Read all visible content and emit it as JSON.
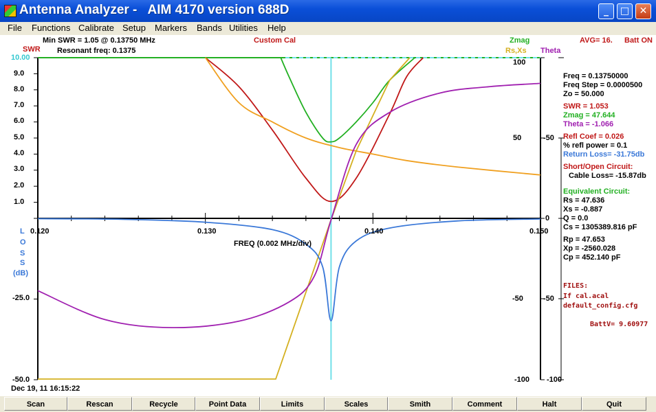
{
  "window": {
    "title": "Antenna Analyzer -   AIM 4170 version 688D",
    "minimize_glyph": "_",
    "maximize_glyph": "□",
    "close_glyph": "✕"
  },
  "menu": [
    "File",
    "Functions",
    "Calibrate",
    "Setup",
    "Markers",
    "Bands",
    "Utilities",
    "Help"
  ],
  "header": {
    "min_swr": "Min SWR =   1.05 @  0.13750 MHz",
    "resonant": "Resonant freq:  0.1375",
    "custom_cal": "Custom Cal",
    "avg": "AVG=  16.",
    "batt": "Batt ON",
    "zmag_label": "Zmag",
    "rsxs_label": "Rs,Xs",
    "theta_label": "Theta",
    "swr_label": "SWR"
  },
  "axes": {
    "swr_ticks": [
      "10.00",
      "9.0",
      "8.0",
      "7.0",
      "6.0",
      "5.0",
      "4.0",
      "3.0",
      "2.0",
      "1.0"
    ],
    "loss_ticks": [
      "-25.0",
      "-50.0"
    ],
    "loss_label": [
      "L",
      "O",
      "S",
      "S",
      "(dB)"
    ],
    "x_ticks": [
      "0.120",
      "0.130",
      "0.140",
      "0.150"
    ],
    "x_title": "FREQ (0.002 MHz/div)",
    "right_inner_ticks": [
      "100",
      "50",
      "-50",
      "-100"
    ],
    "right_outer_ticks": [
      "-50",
      "0",
      "-50",
      "-100"
    ],
    "timestamp": "Dec 19, 11  16:15:22"
  },
  "readout": {
    "freq": "Freq =  0.13750000",
    "freq_step": "Freq Step =  0.0000500",
    "zo": "Zo =   50.000",
    "swr": "SWR =    1.053",
    "zmag": "Zmag =    47.644",
    "theta": "Theta =    -1.066",
    "refl_coef": "Refl Coef   = 0.026",
    "refl_power": "% refl power =  0.1",
    "return_loss": "Return Loss= -31.75db",
    "short_open": "Short/Open Circuit:",
    "cable_loss": "Cable Loss= -15.87db",
    "equiv": "Equivalent Circuit:",
    "rs": "Rs =   47.636",
    "xs": "Xs =   -0.887",
    "q": "Q =  0.0",
    "cs": "Cs = 1305389.816  pF",
    "rp": "Rp =   47.653",
    "xp": "Xp = -2560.028",
    "cp": "Cp =  452.140  pF",
    "files": "FILES:",
    "file1": "If cal.acal",
    "file2": "default_config.cfg",
    "battv": "BattV=  9.60977"
  },
  "colors": {
    "swr": "#c01818",
    "zmag": "#22b022",
    "rs": "#f0a020",
    "xs": "#d4b020",
    "theta": "#a020b0",
    "loss": "#3a78d8",
    "cursor": "#70e0e8"
  },
  "buttons": [
    "Scan",
    "Rescan",
    "Recycle",
    "Point Data",
    "Limits",
    "Scales",
    "Smith",
    "Comment",
    "Halt",
    "Quit"
  ],
  "chart_data": {
    "type": "line",
    "xlabel": "FREQ (0.002 MHz/div)",
    "xlim": [
      0.12,
      0.15
    ],
    "cursor_x": 0.1375,
    "series": [
      {
        "name": "SWR",
        "ylim": [
          0,
          10
        ],
        "x": [
          0.13,
          0.132,
          0.134,
          0.136,
          0.1375,
          0.139,
          0.141,
          0.142,
          0.143
        ],
        "values": [
          10,
          8.2,
          5.5,
          2.5,
          1.05,
          2.5,
          6.5,
          8.8,
          10
        ]
      },
      {
        "name": "Zmag",
        "ylim": [
          0,
          100
        ],
        "x": [
          0.1345,
          0.135,
          0.136,
          0.137,
          0.1375,
          0.138,
          0.139,
          0.14,
          0.141,
          0.1425
        ],
        "values": [
          100,
          88,
          66,
          50,
          47.6,
          50,
          60,
          72,
          86,
          100
        ]
      },
      {
        "name": "Rs",
        "ylim": [
          0,
          100
        ],
        "x": [
          0.13,
          0.132,
          0.134,
          0.136,
          0.138,
          0.14,
          0.142,
          0.145,
          0.15
        ],
        "values": [
          100,
          72,
          60,
          50,
          44,
          40,
          36,
          32,
          27
        ]
      },
      {
        "name": "Xs",
        "ylim": [
          -100,
          100
        ],
        "x": [
          0.12,
          0.1342,
          0.136,
          0.1375,
          0.139,
          0.141,
          0.1422
        ],
        "values": [
          -100,
          -100,
          -46,
          -0.9,
          42,
          86,
          100
        ]
      },
      {
        "name": "Theta",
        "ylim": [
          -100,
          100
        ],
        "x": [
          0.12,
          0.124,
          0.128,
          0.132,
          0.135,
          0.1365,
          0.1375,
          0.139,
          0.141,
          0.144,
          0.147,
          0.15
        ],
        "values": [
          -45,
          -63,
          -68,
          -64,
          -52,
          -36,
          -1,
          46,
          66,
          78,
          82,
          84
        ]
      },
      {
        "name": "Return Loss",
        "ylim": [
          -50,
          0
        ],
        "x": [
          0.12,
          0.125,
          0.13,
          0.134,
          0.136,
          0.137,
          0.1375,
          0.138,
          0.139,
          0.141,
          0.145,
          0.15
        ],
        "values": [
          -0.1,
          -0.3,
          -1.2,
          -3.5,
          -8,
          -15,
          -31.75,
          -15,
          -7,
          -3,
          -0.8,
          -0.2
        ]
      }
    ]
  }
}
